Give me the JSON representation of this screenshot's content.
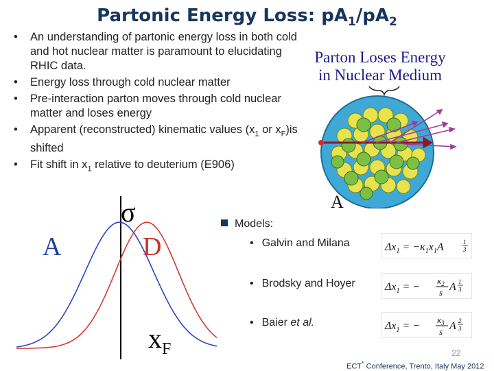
{
  "title": {
    "main": "Partonic Energy Loss:  p",
    "a1": "A",
    "a1_sub": "1",
    "sep": "/p",
    "a2": "A",
    "a2_sub": "2"
  },
  "bullets": [
    {
      "text": "An understanding of partonic energy loss in both cold and hot nuclear matter is paramount to elucidating RHIC data."
    },
    {
      "text": "Energy loss through cold nuclear matter"
    },
    {
      "text": "Pre-interaction parton moves through cold nuclear matter and loses energy"
    },
    {
      "pre": "Apparent (reconstructed) kinematic values (x",
      "sub1": "1",
      "mid": " or x",
      "sub2": "F",
      "post": ")is shifted"
    },
    {
      "pre": "Fit shift in x",
      "sub1": "1",
      "post": " relative to deuterium (E906)"
    }
  ],
  "figure": {
    "caption_line1": "Parton Loses Energy",
    "caption_line2": "in Nuclear Medium",
    "nucleus_label": "A"
  },
  "plot": {
    "label_a": "A",
    "label_d": "D",
    "sigma": "σ",
    "xf_main": "x",
    "xf_sub": "F",
    "colors": {
      "a": "#2a46c8",
      "d": "#d43a2f"
    }
  },
  "models": {
    "heading": "Models:",
    "items": [
      {
        "name": "Galvin and Milana",
        "symbol": "κ",
        "sub": "1",
        "exp": "1/3",
        "negative": true,
        "form": "product"
      },
      {
        "name": "Brodsky and Hoyer",
        "symbol": "κ",
        "sub": "2",
        "exp": "1/3",
        "negative": true,
        "form": "fraction"
      },
      {
        "name_pre": "Baier ",
        "name_em": "et al.",
        "symbol": "κ",
        "sub": "3",
        "exp": "2/3",
        "negative": true,
        "form": "fraction"
      }
    ]
  },
  "page_number": "22",
  "footer": {
    "pre": "ECT",
    "sup": "*",
    "post": " Conference, Trento, Italy May 2012"
  }
}
